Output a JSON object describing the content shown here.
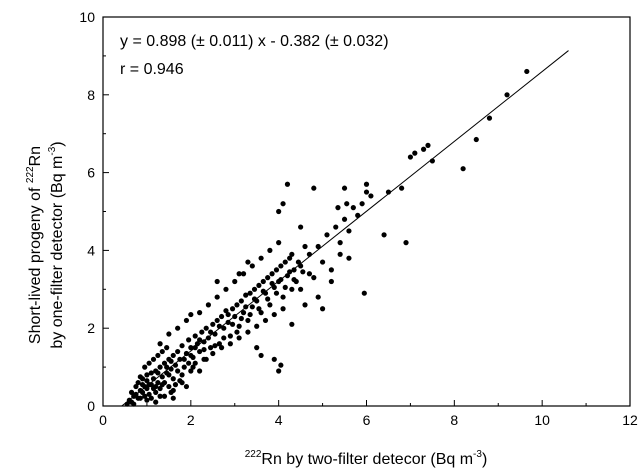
{
  "chart_data": {
    "type": "scatter",
    "title": "",
    "xlabel": {
      "sup": "222",
      "text": "Rn by two-filter detecor (Bq m",
      "unit_sup": "-3",
      "close": ")"
    },
    "ylabel_line1": {
      "text": "Short-lived progeny of ",
      "sup": "222",
      "tail": "Rn"
    },
    "ylabel_line2": {
      "text": "by one-filter detector (Bq m",
      "unit_sup": "-3",
      "close": ")"
    },
    "xlim": [
      0,
      12
    ],
    "ylim": [
      0,
      10
    ],
    "xticks": [
      0,
      2,
      4,
      6,
      8,
      10,
      12
    ],
    "yticks": [
      0,
      2,
      4,
      6,
      8,
      10
    ],
    "annotation_line1": "y = 0.898 (± 0.011) x - 0.382 (± 0.032)",
    "annotation_line2": "r = 0.946",
    "fit": {
      "slope": 0.898,
      "intercept": -0.382,
      "x_range": [
        0.43,
        10.6
      ]
    },
    "marker_color": "#000000",
    "points": [
      [
        0.55,
        0.05
      ],
      [
        0.6,
        0.15
      ],
      [
        0.65,
        0.1
      ],
      [
        0.7,
        0.25
      ],
      [
        0.75,
        0.3
      ],
      [
        0.8,
        0.2
      ],
      [
        0.85,
        0.4
      ],
      [
        0.9,
        0.35
      ],
      [
        0.95,
        0.5
      ],
      [
        1.0,
        0.45
      ],
      [
        0.7,
        0.05
      ],
      [
        0.8,
        0.6
      ],
      [
        0.9,
        0.7
      ],
      [
        1.0,
        0.8
      ],
      [
        1.05,
        0.3
      ],
      [
        1.1,
        0.55
      ],
      [
        1.15,
        0.7
      ],
      [
        1.2,
        0.9
      ],
      [
        1.25,
        0.6
      ],
      [
        1.3,
        1.0
      ],
      [
        1.0,
        0.15
      ],
      [
        1.1,
        0.2
      ],
      [
        1.2,
        0.35
      ],
      [
        1.3,
        0.45
      ],
      [
        1.35,
        0.75
      ],
      [
        1.4,
        1.1
      ],
      [
        1.45,
        0.85
      ],
      [
        1.5,
        1.2
      ],
      [
        1.55,
        0.95
      ],
      [
        1.6,
        1.3
      ],
      [
        0.85,
        0.75
      ],
      [
        0.95,
        1.0
      ],
      [
        1.05,
        1.1
      ],
      [
        1.15,
        1.2
      ],
      [
        1.25,
        1.3
      ],
      [
        1.35,
        1.4
      ],
      [
        1.45,
        1.5
      ],
      [
        1.5,
        0.5
      ],
      [
        1.6,
        0.7
      ],
      [
        1.65,
        1.05
      ],
      [
        1.7,
        1.4
      ],
      [
        1.75,
        1.2
      ],
      [
        1.8,
        1.55
      ],
      [
        1.85,
        1.0
      ],
      [
        1.9,
        1.35
      ],
      [
        1.95,
        1.7
      ],
      [
        2.0,
        1.5
      ],
      [
        2.05,
        1.25
      ],
      [
        2.1,
        1.8
      ],
      [
        2.15,
        1.6
      ],
      [
        1.2,
        0.1
      ],
      [
        1.4,
        0.25
      ],
      [
        1.6,
        0.4
      ],
      [
        1.8,
        0.6
      ],
      [
        2.0,
        0.9
      ],
      [
        2.1,
        1.1
      ],
      [
        2.2,
        1.4
      ],
      [
        2.25,
        1.9
      ],
      [
        2.3,
        1.65
      ],
      [
        2.35,
        2.0
      ],
      [
        2.4,
        1.75
      ],
      [
        2.45,
        1.5
      ],
      [
        2.5,
        2.1
      ],
      [
        2.55,
        1.85
      ],
      [
        2.6,
        2.2
      ],
      [
        2.65,
        1.6
      ],
      [
        2.7,
        2.3
      ],
      [
        2.75,
        2.0
      ],
      [
        2.8,
        2.45
      ],
      [
        2.85,
        2.15
      ],
      [
        2.9,
        1.8
      ],
      [
        2.95,
        2.5
      ],
      [
        3.0,
        2.3
      ],
      [
        3.05,
        2.6
      ],
      [
        3.1,
        2.05
      ],
      [
        3.15,
        2.7
      ],
      [
        3.2,
        2.4
      ],
      [
        3.25,
        2.85
      ],
      [
        3.3,
        2.2
      ],
      [
        3.35,
        2.9
      ],
      [
        3.4,
        2.55
      ],
      [
        3.45,
        3.0
      ],
      [
        3.5,
        2.7
      ],
      [
        3.55,
        3.1
      ],
      [
        3.6,
        2.4
      ],
      [
        3.65,
        3.2
      ],
      [
        3.7,
        2.9
      ],
      [
        3.75,
        3.3
      ],
      [
        3.8,
        2.6
      ],
      [
        3.85,
        3.4
      ],
      [
        3.9,
        3.05
      ],
      [
        3.95,
        3.5
      ],
      [
        4.0,
        3.2
      ],
      [
        4.05,
        3.6
      ],
      [
        4.1,
        2.8
      ],
      [
        4.15,
        3.7
      ],
      [
        4.2,
        3.35
      ],
      [
        4.25,
        3.8
      ],
      [
        4.3,
        3.0
      ],
      [
        4.35,
        3.5
      ],
      [
        2.2,
        2.4
      ],
      [
        2.4,
        2.6
      ],
      [
        2.6,
        2.8
      ],
      [
        2.8,
        3.0
      ],
      [
        3.0,
        3.2
      ],
      [
        3.2,
        3.4
      ],
      [
        3.4,
        3.6
      ],
      [
        3.6,
        3.8
      ],
      [
        3.8,
        4.0
      ],
      [
        4.0,
        4.2
      ],
      [
        2.3,
        1.2
      ],
      [
        2.5,
        1.35
      ],
      [
        2.7,
        1.5
      ],
      [
        2.9,
        1.6
      ],
      [
        3.1,
        1.75
      ],
      [
        3.3,
        1.9
      ],
      [
        3.5,
        2.05
      ],
      [
        3.7,
        2.2
      ],
      [
        3.9,
        2.35
      ],
      [
        4.1,
        2.5
      ],
      [
        4.4,
        3.2
      ],
      [
        4.5,
        3.6
      ],
      [
        4.6,
        2.6
      ],
      [
        4.7,
        3.9
      ],
      [
        4.8,
        3.3
      ],
      [
        4.9,
        4.1
      ],
      [
        5.0,
        3.7
      ],
      [
        5.1,
        4.4
      ],
      [
        5.2,
        3.5
      ],
      [
        5.3,
        4.6
      ],
      [
        5.4,
        4.2
      ],
      [
        5.5,
        4.8
      ],
      [
        5.6,
        4.5
      ],
      [
        5.7,
        5.1
      ],
      [
        5.8,
        4.9
      ],
      [
        5.9,
        5.2
      ],
      [
        6.0,
        5.5
      ],
      [
        6.1,
        5.4
      ],
      [
        5.35,
        5.1
      ],
      [
        5.55,
        5.2
      ],
      [
        4.5,
        3.0
      ],
      [
        4.7,
        3.4
      ],
      [
        4.9,
        2.8
      ],
      [
        5.0,
        2.5
      ],
      [
        5.2,
        3.2
      ],
      [
        5.4,
        3.9
      ],
      [
        5.6,
        3.8
      ],
      [
        4.2,
        5.7
      ],
      [
        4.1,
        5.2
      ],
      [
        4.8,
        5.6
      ],
      [
        5.5,
        5.6
      ],
      [
        6.0,
        5.7
      ],
      [
        4.0,
        5.0
      ],
      [
        4.5,
        4.6
      ],
      [
        3.9,
        1.2
      ],
      [
        4.0,
        0.9
      ],
      [
        3.6,
        1.3
      ],
      [
        4.05,
        1.05
      ],
      [
        4.3,
        2.1
      ],
      [
        3.5,
        1.5
      ],
      [
        5.95,
        2.9
      ],
      [
        6.4,
        4.4
      ],
      [
        6.5,
        5.5
      ],
      [
        6.8,
        5.6
      ],
      [
        6.9,
        4.2
      ],
      [
        7.0,
        6.4
      ],
      [
        7.1,
        6.5
      ],
      [
        7.3,
        6.6
      ],
      [
        7.4,
        6.7
      ],
      [
        7.5,
        6.3
      ],
      [
        8.2,
        6.1
      ],
      [
        8.5,
        6.85
      ],
      [
        8.8,
        7.4
      ],
      [
        9.2,
        8.0
      ],
      [
        9.65,
        8.6
      ],
      [
        4.3,
        3.9
      ],
      [
        4.6,
        4.1
      ],
      [
        3.3,
        3.7
      ],
      [
        3.1,
        3.4
      ],
      [
        2.6,
        3.2
      ],
      [
        1.3,
        1.6
      ],
      [
        1.5,
        1.85
      ],
      [
        1.7,
        2.0
      ],
      [
        1.9,
        2.2
      ],
      [
        2.0,
        2.35
      ],
      [
        1.8,
        0.8
      ],
      [
        2.05,
        1.0
      ],
      [
        2.2,
        0.9
      ],
      [
        1.6,
        0.2
      ],
      [
        1.9,
        0.5
      ],
      [
        0.9,
        0.55
      ],
      [
        1.0,
        0.65
      ],
      [
        1.1,
        0.85
      ],
      [
        1.2,
        0.5
      ],
      [
        1.3,
        0.25
      ],
      [
        1.4,
        0.6
      ],
      [
        1.5,
        0.8
      ],
      [
        1.55,
        0.35
      ],
      [
        1.65,
        0.55
      ],
      [
        1.7,
        0.9
      ],
      [
        1.75,
        0.65
      ],
      [
        1.85,
        1.2
      ],
      [
        1.95,
        1.1
      ],
      [
        2.0,
        1.3
      ],
      [
        2.1,
        1.5
      ],
      [
        2.2,
        1.7
      ],
      [
        2.3,
        1.45
      ],
      [
        2.35,
        1.2
      ],
      [
        2.45,
        1.9
      ],
      [
        2.55,
        1.55
      ],
      [
        2.65,
        2.05
      ],
      [
        2.75,
        1.75
      ],
      [
        2.85,
        2.35
      ],
      [
        2.95,
        2.1
      ],
      [
        3.05,
        1.9
      ],
      [
        3.15,
        2.25
      ],
      [
        3.25,
        2.55
      ],
      [
        3.35,
        2.35
      ],
      [
        3.45,
        2.75
      ],
      [
        3.55,
        2.5
      ],
      [
        3.65,
        2.95
      ],
      [
        3.75,
        2.75
      ],
      [
        3.85,
        3.15
      ],
      [
        3.95,
        2.9
      ],
      [
        4.05,
        3.25
      ],
      [
        4.15,
        3.05
      ],
      [
        4.25,
        3.45
      ],
      [
        4.35,
        3.25
      ],
      [
        4.45,
        3.7
      ],
      [
        4.55,
        3.45
      ],
      [
        0.65,
        0.35
      ],
      [
        0.75,
        0.5
      ],
      [
        0.85,
        0.2
      ],
      [
        0.95,
        0.25
      ],
      [
        1.05,
        0.55
      ],
      [
        1.15,
        0.45
      ],
      [
        1.25,
        0.85
      ],
      [
        1.35,
        0.55
      ],
      [
        1.45,
        1.0
      ],
      [
        1.55,
        1.15
      ]
    ]
  }
}
